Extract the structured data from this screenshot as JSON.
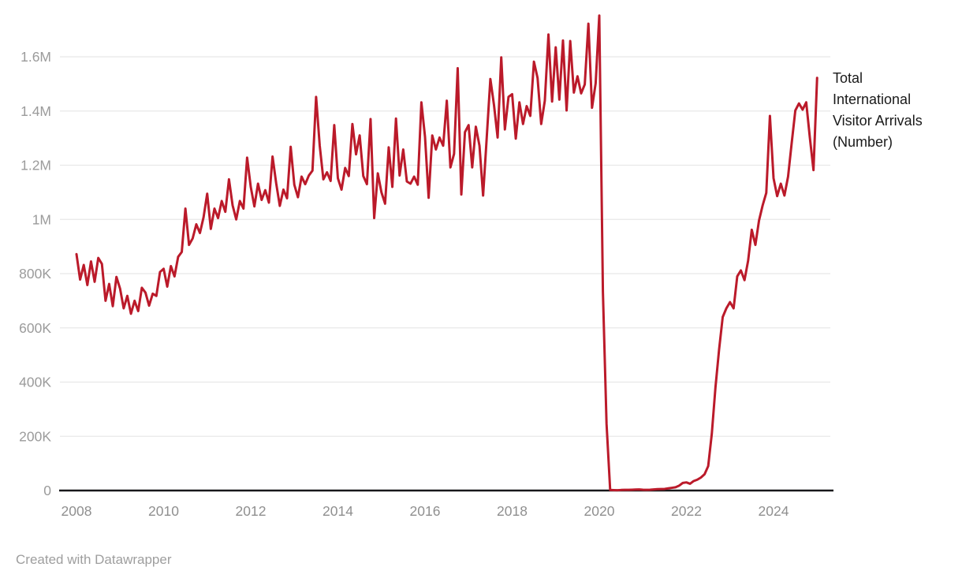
{
  "chart_data": {
    "type": "line",
    "series_label": "Total International Visitor Arrivals (Number)",
    "frequency": "monthly",
    "x_start": "2008-01",
    "x_end": "2025-01",
    "line_color": "#bb1a2a",
    "grid": "horizontal",
    "legend_position": "right-of-line-end",
    "ylim": [
      0,
      1760000
    ],
    "y_ticks": [
      {
        "label": "0",
        "value": 0
      },
      {
        "label": "200K",
        "value": 200000
      },
      {
        "label": "400K",
        "value": 400000
      },
      {
        "label": "600K",
        "value": 600000
      },
      {
        "label": "800K",
        "value": 800000
      },
      {
        "label": "1M",
        "value": 1000000
      },
      {
        "label": "1.2M",
        "value": 1200000
      },
      {
        "label": "1.4M",
        "value": 1400000
      },
      {
        "label": "1.6M",
        "value": 1600000
      }
    ],
    "x_tick_labels": [
      "2008",
      "2010",
      "2012",
      "2014",
      "2016",
      "2018",
      "2020",
      "2022",
      "2024"
    ],
    "values": [
      872000,
      778000,
      832000,
      758000,
      845000,
      770000,
      858000,
      836000,
      700000,
      762000,
      680000,
      788000,
      745000,
      672000,
      718000,
      652000,
      700000,
      662000,
      748000,
      730000,
      682000,
      726000,
      718000,
      806000,
      818000,
      752000,
      828000,
      790000,
      862000,
      880000,
      1040000,
      906000,
      930000,
      982000,
      950000,
      1008000,
      1095000,
      965000,
      1040000,
      1005000,
      1068000,
      1028000,
      1148000,
      1052000,
      1000000,
      1068000,
      1040000,
      1228000,
      1120000,
      1048000,
      1132000,
      1072000,
      1108000,
      1062000,
      1232000,
      1134000,
      1050000,
      1110000,
      1078000,
      1268000,
      1128000,
      1082000,
      1158000,
      1130000,
      1162000,
      1180000,
      1452000,
      1272000,
      1148000,
      1174000,
      1142000,
      1348000,
      1152000,
      1110000,
      1190000,
      1160000,
      1352000,
      1240000,
      1310000,
      1160000,
      1130000,
      1370000,
      1005000,
      1170000,
      1100000,
      1058000,
      1266000,
      1120000,
      1372000,
      1162000,
      1258000,
      1140000,
      1132000,
      1158000,
      1128000,
      1432000,
      1305000,
      1080000,
      1310000,
      1258000,
      1302000,
      1272000,
      1438000,
      1192000,
      1242000,
      1558000,
      1092000,
      1322000,
      1348000,
      1192000,
      1342000,
      1272000,
      1088000,
      1302000,
      1518000,
      1422000,
      1302000,
      1598000,
      1332000,
      1452000,
      1462000,
      1298000,
      1432000,
      1352000,
      1418000,
      1382000,
      1582000,
      1522000,
      1352000,
      1438000,
      1682000,
      1435000,
      1635000,
      1442000,
      1660000,
      1402000,
      1658000,
      1468000,
      1528000,
      1465000,
      1498000,
      1722000,
      1412000,
      1502000,
      1752000,
      733000,
      246000,
      2000,
      1500,
      1200,
      2000,
      2500,
      2500,
      3000,
      3500,
      4000,
      3000,
      2500,
      3000,
      4000,
      5000,
      5500,
      6000,
      8000,
      10000,
      12000,
      18000,
      28000,
      30000,
      25000,
      35000,
      40000,
      48000,
      60000,
      90000,
      210000,
      380000,
      520000,
      640000,
      672000,
      695000,
      672000,
      790000,
      812000,
      776000,
      848000,
      962000,
      906000,
      996000,
      1052000,
      1098000,
      1382000,
      1152000,
      1086000,
      1132000,
      1088000,
      1158000,
      1282000,
      1402000,
      1428000,
      1405000,
      1432000,
      1302000,
      1182000,
      1522000
    ]
  },
  "colors": {
    "line": "#bb1a2a",
    "gridline": "#e8e8e8",
    "axis_baseline": "#18181a",
    "y_tick_text": "#9b9b9b",
    "x_tick_text": "#8f8f8f",
    "series_label_text": "#1a1a1a",
    "footer_text": "#9e9e9e",
    "background": "#ffffff"
  },
  "footer": {
    "credit": "Created with Datawrapper"
  }
}
